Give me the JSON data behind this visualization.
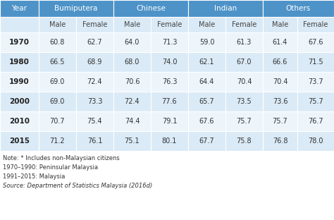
{
  "header_row1": [
    "Year",
    "Bumiputera",
    "Chinese",
    "Indian",
    "Others"
  ],
  "header_row2": [
    "",
    "Male",
    "Female",
    "Male",
    "Female",
    "Male",
    "Female",
    "Male",
    "Female"
  ],
  "rows": [
    [
      "1970",
      "60.8",
      "62.7",
      "64.0",
      "71.3",
      "59.0",
      "61.3",
      "61.4",
      "67.6"
    ],
    [
      "1980",
      "66.5",
      "68.9",
      "68.0",
      "74.0",
      "62.1",
      "67.0",
      "66.6",
      "71.5"
    ],
    [
      "1990",
      "69.0",
      "72.4",
      "70.6",
      "76.3",
      "64.4",
      "70.4",
      "70.4",
      "73.7"
    ],
    [
      "2000",
      "69.0",
      "73.3",
      "72.4",
      "77.6",
      "65.7",
      "73.5",
      "73.6",
      "75.7"
    ],
    [
      "2010",
      "70.7",
      "75.4",
      "74.4",
      "79.1",
      "67.6",
      "75.7",
      "75.7",
      "76.7"
    ],
    [
      "2015",
      "71.2",
      "76.1",
      "75.1",
      "80.1",
      "67.7",
      "75.8",
      "76.8",
      "78.0"
    ]
  ],
  "note_lines": [
    [
      "Note: * Includes non-Malaysian citizens",
      "normal"
    ],
    [
      "1970–1990: Peninsular Malaysia",
      "normal"
    ],
    [
      "1991–2015: Malaysia",
      "normal"
    ],
    [
      "Source: Department of Statistics Malaysia (2016d)",
      "italic"
    ]
  ],
  "header_bg_color": "#4e93c8",
  "subheader_bg_color": "#daeaf6",
  "row_colors": [
    "#edf5fb",
    "#daeaf6"
  ],
  "header_text_color": "#ffffff",
  "data_text_color": "#333333",
  "figsize": [
    4.74,
    3.12
  ],
  "dpi": 100
}
